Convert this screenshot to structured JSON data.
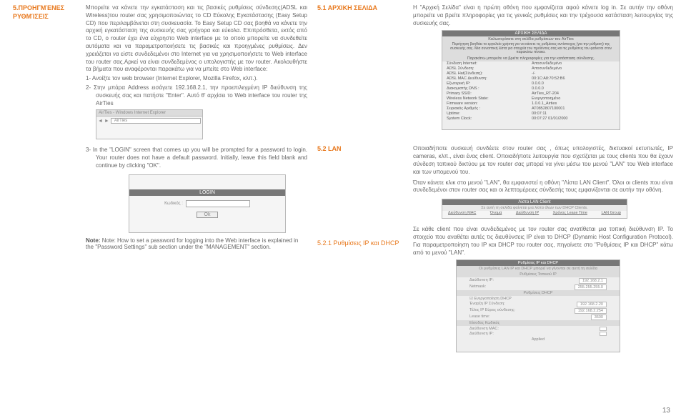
{
  "page_number": "13",
  "left": {
    "section_label": "5.ΠΡΟΗΓΜΈΝΕΣ ΡΥΘΜΊΣΕΙΣ",
    "para": "Μπορείτε να κάνετε την εγκατάσταση και τις βασικές ρυθμίσεις σύνδεσης(ADSL και Wireless)του router σας χρησιμοποιώντας το CD Εύκολης Εγκατάστασης (Easy Setup CD) που περιλαμβάνεται στη συσκευασία. Το Easy Setup CD σας βοηθά να κάνετε την αρχική εγκατάσταση της συσκευής σας γρήγορα και εύκολα. Επιπρόσθετα, εκτός από το CD, ο router έχει ένα εύχρηστο Web interface  με το οποίο μπορείτε να συνδεθείτε αυτόματα και να παραμετροποιήσετε τις βασικές και προηγμένες ρυθμίσεις. Δεν χρειάζεται να είστε συνδεδεμένοι στο Internet για να χρησιμοποιήσετε το Web interface του router σας.Αρκεί να είναι συνδεδεμένος ο υπολογιστής με τον router. Ακολουθήστε τα βήματα που αναφέρονται παρακάτω για να μπείτε στο Web interface:",
    "li1": "1-  Ανοίξτε τον web browser (Internet Explorer, Mozilla Firefox, κλπ.).",
    "li2": "2-  Στην μπάρα Address εισάγετε 192.168.2.1, την προεπιλεγμένη IP διεύθυνση της συσκευής σας και πατήστε \"Enter\". Αυτό θ' αρχίσει το Web interface του router της AirTies",
    "ie_title": "AirTies - Windows Internet Explorer",
    "li3": "3-  In the \"LOGIN\" screen that comes up you will be prompted for a password to login. Your router does not have a default password. Initially, leave this field blank and continue by clicking \"OK\".",
    "login_title": "LOGIN",
    "login_label": "Κωδικός :",
    "login_ok": "Ok",
    "note": "Note: How to set a password for logging into the Web interface is explained in the \"Password Settings\" sub section under the \"MANAGEMENT\" section."
  },
  "right": {
    "s51_title": "5.1 ΑΡΧΙΚΗ ΣΕΛΙΔΑ",
    "s51_para": "Η \"Αρχική Σελίδα\" είναι η πρώτη οθόνη που εμφανίζεται αφού κάνετε log in. Σε αυτήν την οθόνη μπορείτε να βρείτε πληροφορίες για τις γενικές ρυθμίσεις και την τρέχουσα κατάσταση λειτουργίας της συσκευής σας.",
    "status_head": "ΑΡΧΙΚΗ ΣΕΛΙΔΑ",
    "status_sub1": "Καλωσορίσατε στη σελίδα ρυθμίσεων του AirTies",
    "status_sub2": "Περιήγηση βοηθάει το εργαλείο χρήστη για να κάνετε τις ρυθμίσεις αντίστοιχος (για την ρύθμιση) της συσκευής σας. Μια συνοπτική λίστα για στοιχεία του προϊόντος σας και τις ρυθμίσεις του φαίνεται στον παρακάτω πίνακα.",
    "status_sub3": "Παρακάτω μπορείτε να βρείτε πληροφορίες για την κατάσταση σύνδεσης.",
    "rows": [
      [
        "Σύνδεση Internet:",
        "Αποσυνδεδεμένο"
      ],
      [
        "ADSL Σύνδεση:",
        "Αποσυνδεδεμένο"
      ],
      [
        "ADSL Hat(Σύνδεση):",
        "-/-"
      ],
      [
        "ADSL MAC Διεύθυνση:",
        "00:1C:A8:70:52:B6"
      ],
      [
        "Εξωτερική IP:",
        "0.0.0.0"
      ],
      [
        "Διακομιστής DNS :",
        "0.0.0.0"
      ],
      [
        "Primary SSID:",
        "AirTies_RT-204"
      ],
      [
        "Wireless Network State:",
        "Ενεργοποιημένο"
      ],
      [
        "Firmware version:",
        "1.0.0.1_Airties"
      ],
      [
        "Σειριακός Αριθμός :",
        "AT0852807100001"
      ],
      [
        "Uptime:",
        "00:07:11"
      ],
      [
        "System Clock:",
        "00:07:27 01/01/2000"
      ]
    ],
    "s52_title": "5.2 LAN",
    "s52_para1": "Οποιαδήποτε συσκευή συνδέετε στον router σας , όπως υπολογιστές, δικτυακοί εκτυπωτές, IP cameras, κλπ., είναι ένας client. Οποιαδήποτε λειτουργία που σχετίζεται με τους clients που θα έχουν σύνδεση τοπικού δικτύου με τον router σας μπορεί να γίνει μέσω του μενού \"LAN\" του Web interface και των υπομενού του.",
    "s52_para2": "Όταν κάνετε κλικ στο μενού \"LAN\", θα εμφανιστεί η οθόνη \"Λίστα LAN Client\". Όλοι οι clients που είναι συνδεδεμένοι στον router σας και οι λεπτομέρειες σύνδεσής τους εμφανίζονται σε αυτήν την οθόνη.",
    "lan_head": "Λίστα LAN Client",
    "lan_sub": "Σε αυτή τη σελίδα φαίνεται μια λίστα όλων των DHCP Clients.",
    "lan_cols": [
      "Διεύθυνση MAC",
      "Όνομα",
      "Διεύθυνση IP",
      "Χρόνος Lease Time",
      "LAN Group"
    ],
    "s521_title": "5.2.1 Ρυθμίσεις IP και DHCP",
    "s521_para": "Σε κάθε client που είναι συνδεδεμένος με τον router σας ανατίθεται μια τοπική διεύθυνση IP. Το στοιχείο που αναθέτει αυτές τις διευθύνσεις IP είναι το DHCP (Dynamic Host Configuration Protocol). Για παραμετροποίηση του IP και DHCP του router σας, πηγαίνετε στο \"Ρυθμίσεις IP και DHCP\" κάτω από το μενού \"LAN\".",
    "dhcp_head": "Ρυθμίσεις IP και DHCP",
    "dhcp_sub1": "Οι ρυθμίσεις LAN IP και DHCP μπορεί να γίνονται σε αυτή τη σελίδα",
    "dhcp_sec1": "Ρυθμίσεις Τοπικού IP",
    "dhcp_rows1": [
      [
        "Διεύθυνση IP:",
        "192.168.2.1"
      ],
      [
        "Netmask:",
        "255.255.255.0"
      ]
    ],
    "dhcp_sec2": "Ρυθμίσεις DHCP",
    "dhcp_check": "Ενεργοποίηση DHCP",
    "dhcp_rows2": [
      [
        "Έναρξη IP Σύνδεση:",
        "192.168.2.20"
      ],
      [
        "Τέλος IP Εύρος σύνδεσης:",
        "192.168.2.254"
      ],
      [
        "Lease time:",
        "3600"
      ]
    ],
    "dhcp_sec3": "Είσοδος Κωδικός",
    "dhcp_rows3": [
      [
        "Διεύθυνση MAC:",
        ""
      ],
      [
        "Διεύθυνση IP:",
        ""
      ]
    ],
    "dhcp_btn": "Applied"
  }
}
